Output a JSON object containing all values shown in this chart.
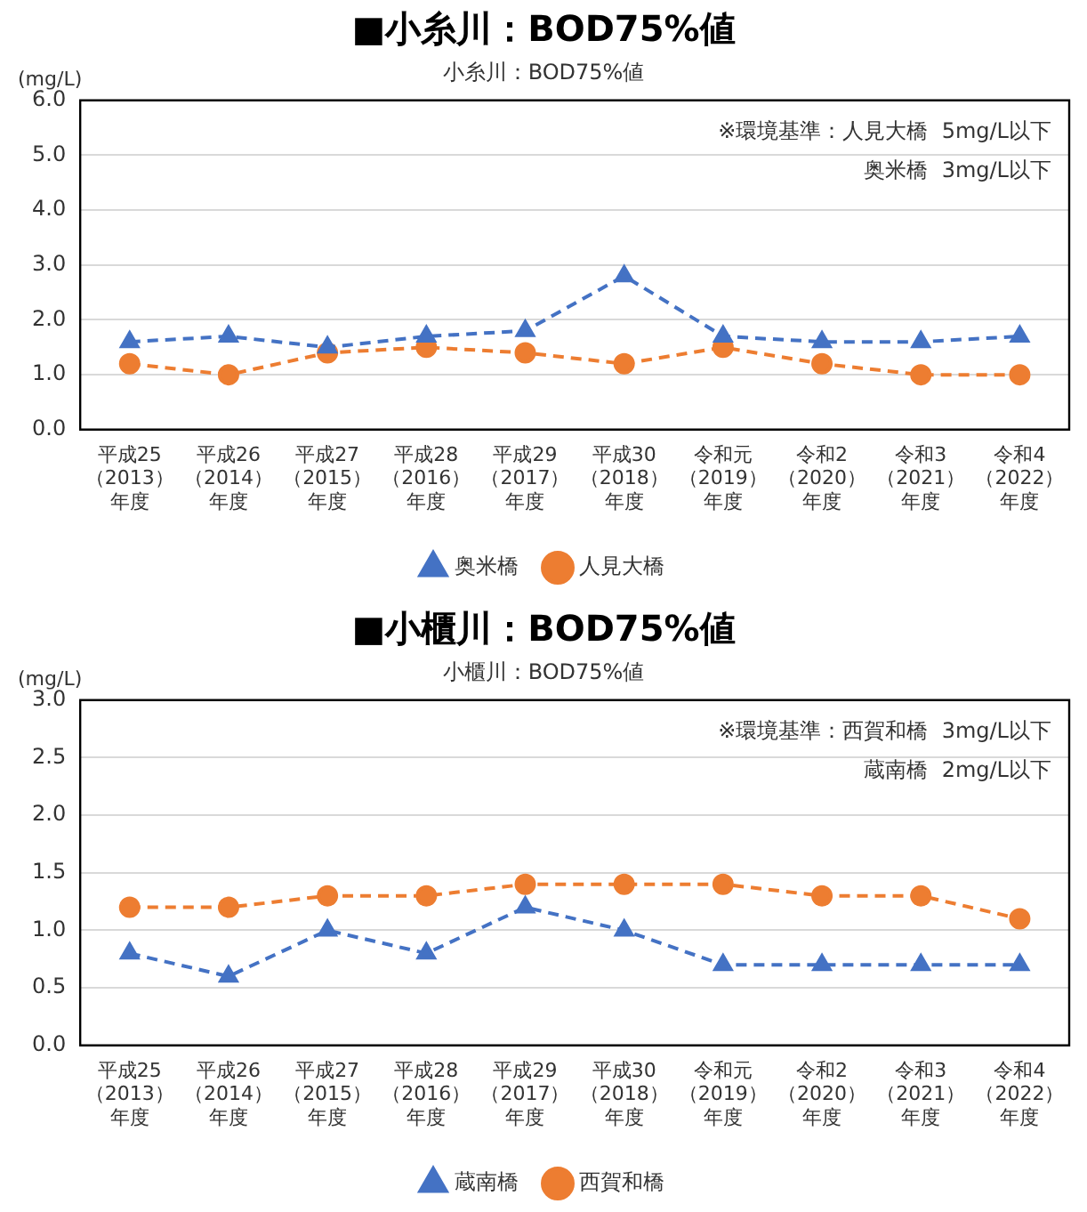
{
  "chart_data": [
    {
      "type": "line",
      "title": "■小糸川：BOD75%値",
      "subtitle": "小糸川：BOD75%値",
      "ylabel": "(mg/L)",
      "categories": [
        "平成25（2013）年度",
        "平成26（2014）年度",
        "平成27（2015）年度",
        "平成28（2016）年度",
        "平成29（2017）年度",
        "平成30（2018）年度",
        "令和元（2019）年度",
        "令和2（2020）年度",
        "令和3（2021）年度",
        "令和4（2022）年度"
      ],
      "series": [
        {
          "name": "奥米橋",
          "color": "#4472c4",
          "marker": "triangle",
          "line_style": "dashed",
          "values": [
            1.6,
            1.7,
            1.5,
            1.7,
            1.8,
            2.8,
            1.7,
            1.6,
            1.6,
            1.7
          ]
        },
        {
          "name": "人見大橋",
          "color": "#ed7d31",
          "marker": "circle",
          "line_style": "dashed",
          "values": [
            1.2,
            1.0,
            1.4,
            1.5,
            1.4,
            1.2,
            1.5,
            1.2,
            1.0,
            1.0
          ]
        }
      ],
      "ylim": [
        0,
        6
      ],
      "yticks": [
        {
          "value": 0,
          "label": "0.0"
        },
        {
          "value": 1,
          "label": "1.0"
        },
        {
          "value": 2,
          "label": "2.0"
        },
        {
          "value": 3,
          "label": "3.0"
        },
        {
          "value": 4,
          "label": "4.0"
        },
        {
          "value": 5,
          "label": "5.0"
        },
        {
          "value": 6,
          "label": "6.0"
        }
      ],
      "grid": "y",
      "legend": "bottom",
      "annotations": [
        "※環境基準：人見大橋  5mg/L以下",
        "奥米橋  3mg/L以下"
      ]
    },
    {
      "type": "line",
      "title": "■小櫃川：BOD75%値",
      "subtitle": "小櫃川：BOD75%値",
      "ylabel": "(mg/L)",
      "categories": [
        "平成25（2013）年度",
        "平成26（2014）年度",
        "平成27（2015）年度",
        "平成28（2016）年度",
        "平成29（2017）年度",
        "平成30（2018）年度",
        "令和元（2019）年度",
        "令和2（2020）年度",
        "令和3（2021）年度",
        "令和4（2022）年度"
      ],
      "series": [
        {
          "name": "蔵南橋",
          "color": "#4472c4",
          "marker": "triangle",
          "line_style": "dashed",
          "values": [
            0.8,
            0.6,
            1.0,
            0.8,
            1.2,
            1.0,
            0.7,
            0.7,
            0.7,
            0.7
          ]
        },
        {
          "name": "西賀和橋",
          "color": "#ed7d31",
          "marker": "circle",
          "line_style": "dashed",
          "values": [
            1.2,
            1.2,
            1.3,
            1.3,
            1.4,
            1.4,
            1.4,
            1.3,
            1.3,
            1.1
          ]
        }
      ],
      "ylim": [
        0,
        3
      ],
      "yticks": [
        {
          "value": 0,
          "label": "0.0"
        },
        {
          "value": 0.5,
          "label": "0.5"
        },
        {
          "value": 1,
          "label": "1.0"
        },
        {
          "value": 1.5,
          "label": "1.5"
        },
        {
          "value": 2,
          "label": "2.0"
        },
        {
          "value": 2.5,
          "label": "2.5"
        },
        {
          "value": 3,
          "label": "3.0"
        }
      ],
      "grid": "y",
      "legend": "bottom",
      "annotations": [
        "※環境基準：西賀和橋  3mg/L以下",
        "蔵南橋  2mg/L以下"
      ]
    }
  ]
}
